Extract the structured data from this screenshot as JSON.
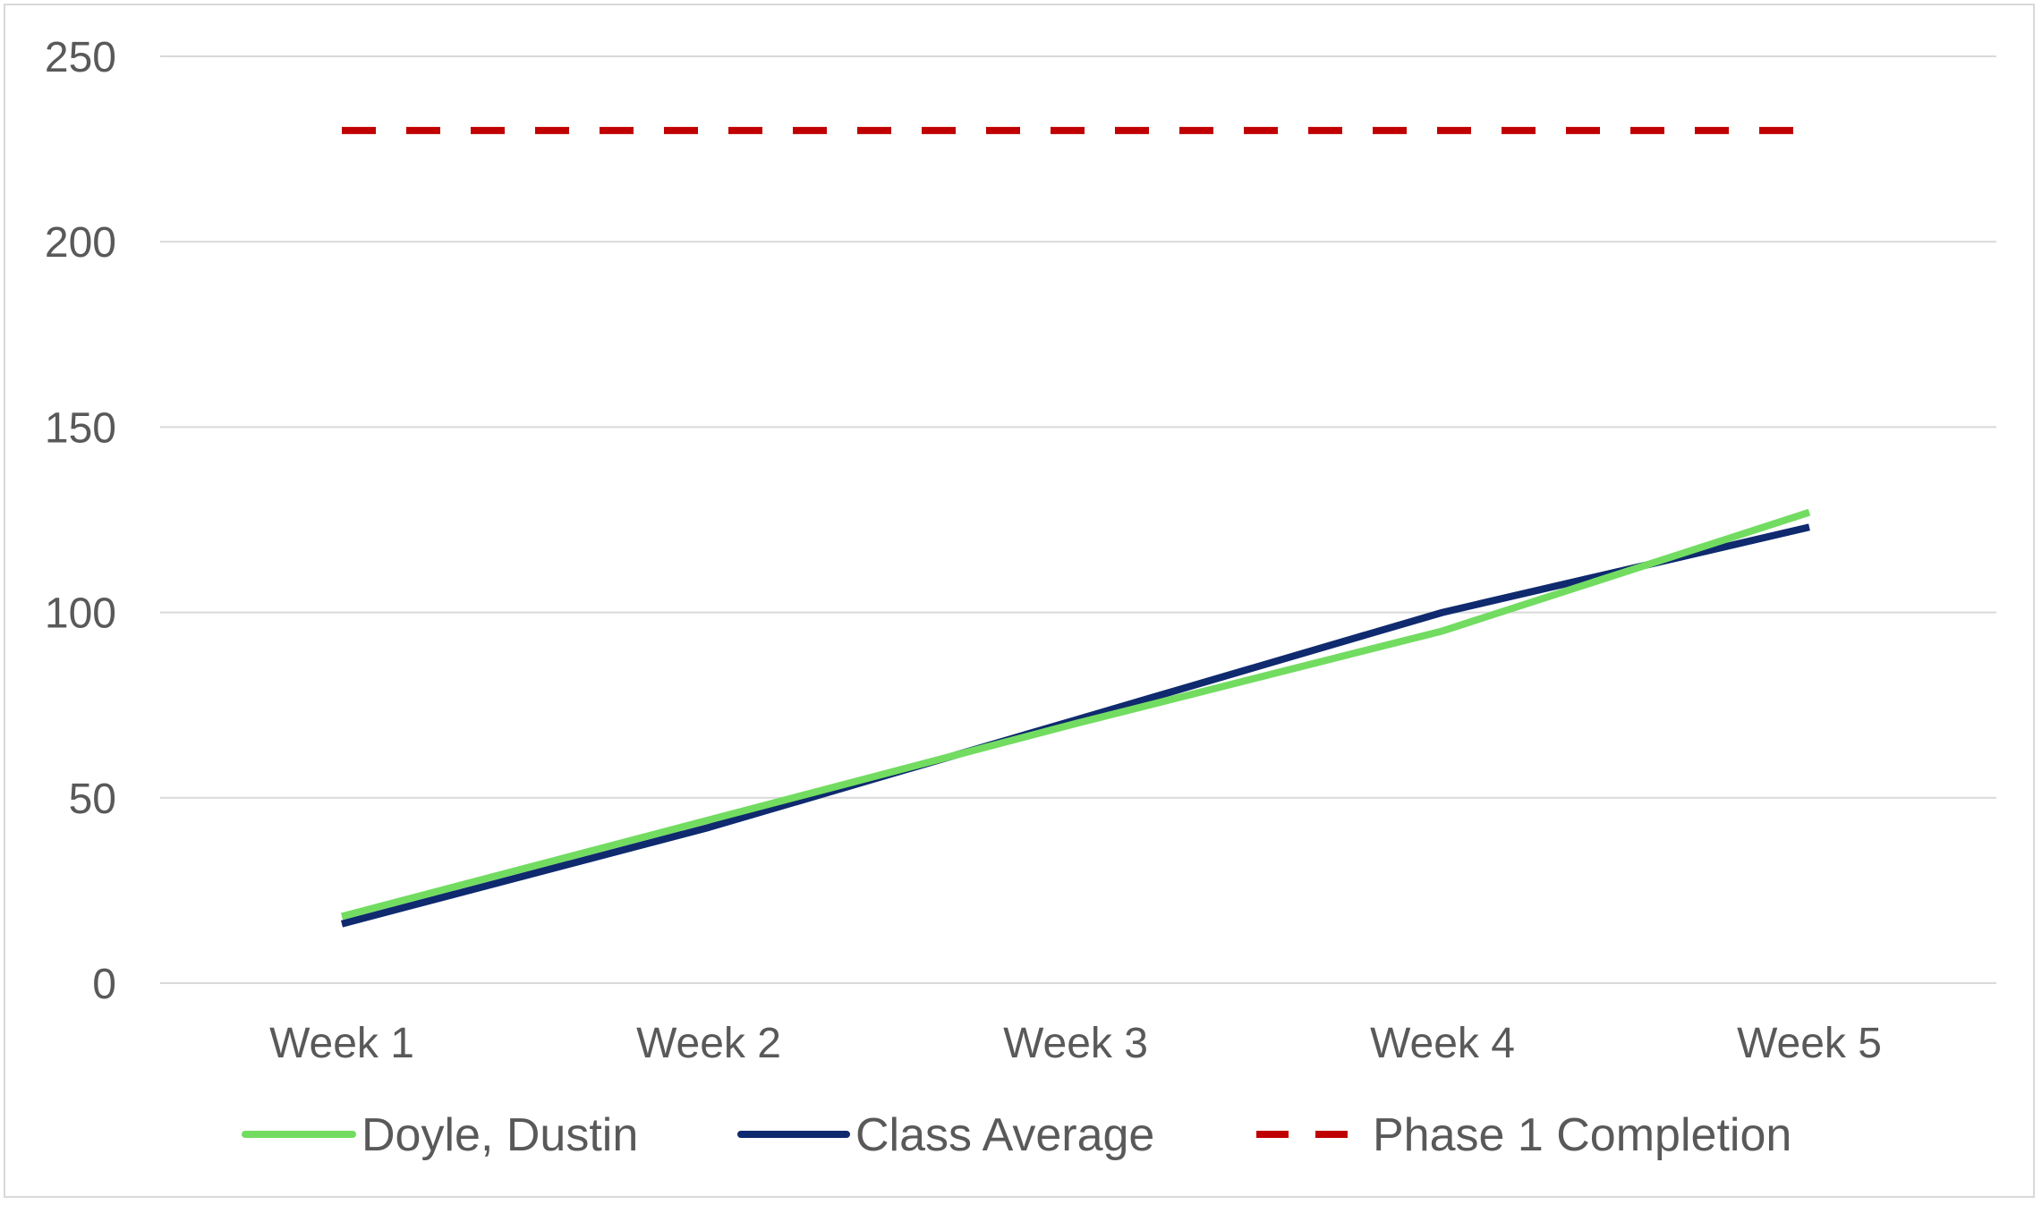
{
  "chart_data": {
    "type": "line",
    "title": "",
    "xlabel": "",
    "ylabel": "",
    "categories": [
      "Week 1",
      "Week 2",
      "Week 3",
      "Week 4",
      "Week 5"
    ],
    "ylim": [
      0,
      250
    ],
    "yticks": [
      0,
      50,
      100,
      150,
      200,
      250
    ],
    "grid": true,
    "legend_position": "bottom",
    "series": [
      {
        "name": "Doyle, Dustin",
        "values": [
          18,
          44,
          70,
          95,
          127
        ],
        "color": "#72dc61",
        "style": "solid"
      },
      {
        "name": "Class Average",
        "values": [
          16,
          42,
          71,
          100,
          123
        ],
        "color": "#0f2a6e",
        "style": "solid"
      },
      {
        "name": "Phase 1 Completion",
        "values": [
          230,
          230,
          230,
          230,
          230
        ],
        "color": "#c00000",
        "style": "dashed"
      }
    ]
  }
}
